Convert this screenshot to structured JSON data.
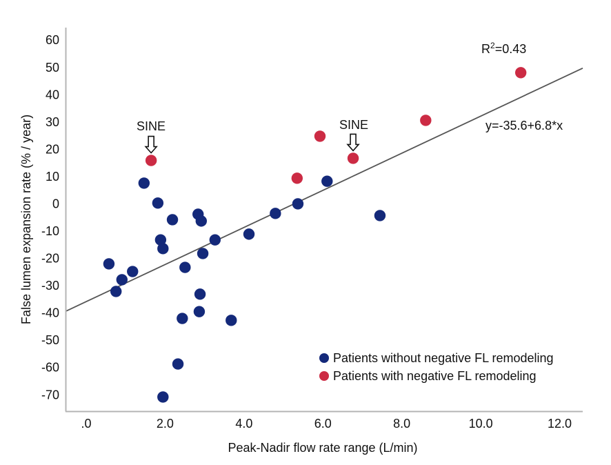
{
  "chart_data": {
    "type": "scatter",
    "title": "",
    "xlabel": "Peak-Nadir flow rate range (L/min)",
    "ylabel": "False lumen expansion rate (% / year)",
    "xlim": [
      -0.56,
      12.55
    ],
    "ylim": [
      -76,
      64
    ],
    "x_ticks": [
      0,
      2,
      4,
      6,
      8,
      10,
      12
    ],
    "x_tick_labels": [
      ".0",
      "2.0",
      "4.0",
      "6.0",
      "8.0",
      "10.0",
      "12.0"
    ],
    "y_ticks": [
      60,
      50,
      40,
      30,
      20,
      10,
      0,
      -10,
      -20,
      -30,
      -40,
      -50,
      -60,
      -70
    ],
    "y_tick_labels": [
      "60",
      "50",
      "40",
      "30",
      "20",
      "10",
      "0",
      "-10",
      "-20",
      "-30",
      "-40",
      "-50",
      "-60",
      "-70"
    ],
    "grid": false,
    "legend_position": "bottom-right",
    "series": [
      {
        "name": "Patients without negative FL remodeling",
        "color": "#14297a",
        "points": [
          {
            "x": 0.54,
            "y": -22.0
          },
          {
            "x": 0.72,
            "y": -32.1
          },
          {
            "x": 0.87,
            "y": -27.8
          },
          {
            "x": 1.14,
            "y": -24.8
          },
          {
            "x": 1.43,
            "y": 7.6
          },
          {
            "x": 1.78,
            "y": 0.3
          },
          {
            "x": 2.15,
            "y": -5.8
          },
          {
            "x": 1.85,
            "y": -13.2
          },
          {
            "x": 1.91,
            "y": -16.4
          },
          {
            "x": 2.8,
            "y": -3.8
          },
          {
            "x": 2.88,
            "y": -6.3
          },
          {
            "x": 2.92,
            "y": -18.2
          },
          {
            "x": 3.23,
            "y": -13.2
          },
          {
            "x": 2.47,
            "y": -23.3
          },
          {
            "x": 2.85,
            "y": -33.1
          },
          {
            "x": 2.83,
            "y": -39.5
          },
          {
            "x": 2.4,
            "y": -42.0
          },
          {
            "x": 3.64,
            "y": -42.7
          },
          {
            "x": 2.29,
            "y": -58.7
          },
          {
            "x": 1.91,
            "y": -70.8
          },
          {
            "x": 4.09,
            "y": -11.1
          },
          {
            "x": 4.76,
            "y": -3.5
          },
          {
            "x": 5.33,
            "y": 0.0
          },
          {
            "x": 6.07,
            "y": 8.3
          },
          {
            "x": 7.41,
            "y": -4.3
          }
        ]
      },
      {
        "name": "Patients with negative FL remodeling",
        "color": "#cc2b44",
        "points": [
          {
            "x": 1.61,
            "y": 15.9
          },
          {
            "x": 5.31,
            "y": 9.4
          },
          {
            "x": 5.89,
            "y": 24.8
          },
          {
            "x": 6.73,
            "y": 16.7
          },
          {
            "x": 8.57,
            "y": 30.6
          },
          {
            "x": 10.98,
            "y": 48.1
          }
        ]
      }
    ],
    "fit_line": {
      "intercept": -35.6,
      "slope": 6.8,
      "color": "#555555"
    },
    "annotations": {
      "r_squared_prefix": "R",
      "r_squared_sup": "2",
      "r_squared_value": "=0.43",
      "equation": "y=-35.6+6.8*x",
      "sine_label": "SINE",
      "sine_targets": [
        {
          "x": 1.61,
          "y": 15.9
        },
        {
          "x": 6.73,
          "y": 16.7
        }
      ]
    }
  }
}
